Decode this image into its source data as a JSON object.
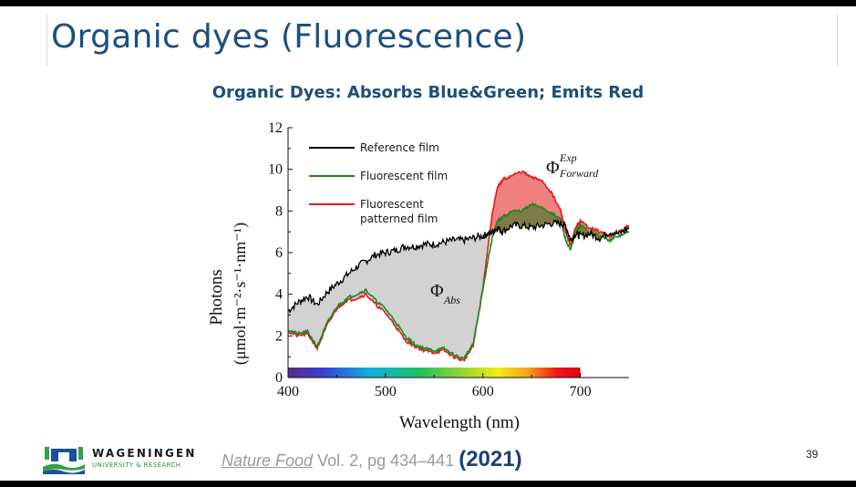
{
  "slide": {
    "title": "Organic dyes (Fluorescence)",
    "subtitle": "Organic Dyes: Absorbs Blue&Green; Emits Red",
    "page_number": "39"
  },
  "logo": {
    "name": "WAGENINGEN",
    "tagline": "UNIVERSITY & RESEARCH",
    "colors": {
      "blue": "#1c4f9c",
      "green": "#34a048"
    }
  },
  "citation": {
    "journal": "Nature Food",
    "details": " Vol. 2, pg 434–441 ",
    "year": "(2021)"
  },
  "chart_data": {
    "type": "line",
    "xlabel": "Wavelength (nm)",
    "ylabel_line1": "Photons",
    "ylabel_line2": "(μmol·m⁻²·s⁻¹·nm⁻¹)",
    "xlim": [
      400,
      750
    ],
    "ylim": [
      0,
      12
    ],
    "xticks": [
      400,
      500,
      600,
      700
    ],
    "yticks": [
      0,
      2,
      4,
      6,
      8,
      10,
      12
    ],
    "grid": false,
    "legend_position": "top-left",
    "annotations": [
      {
        "text": "Φ",
        "sub": "Abs",
        "x": 560,
        "y": 3.9
      },
      {
        "text": "Φ",
        "sub": "Forward",
        "sup": "Exp",
        "x": 690,
        "y": 10.4
      }
    ],
    "colorbar": {
      "x_start": 400,
      "x_end": 700
    },
    "fills": [
      {
        "between": [
          "Reference film",
          "Fluorescent patterned film"
        ],
        "color": "#d2d2d2",
        "where": "below_reference"
      },
      {
        "between": [
          "Fluorescent patterned film",
          "Reference film"
        ],
        "color": "#f08080",
        "where": "above_reference"
      }
    ],
    "x": [
      400,
      410,
      420,
      430,
      440,
      450,
      460,
      470,
      480,
      490,
      500,
      510,
      520,
      530,
      540,
      550,
      560,
      570,
      580,
      590,
      600,
      605,
      610,
      615,
      620,
      630,
      640,
      650,
      660,
      670,
      680,
      685,
      690,
      695,
      700,
      710,
      720,
      730,
      740,
      750
    ],
    "series": [
      {
        "name": "Reference film",
        "color": "#000000",
        "values": [
          3.2,
          3.6,
          3.9,
          3.5,
          4.1,
          4.5,
          4.9,
          5.3,
          5.6,
          5.9,
          6.0,
          6.1,
          6.3,
          6.3,
          6.4,
          6.4,
          6.5,
          6.6,
          6.6,
          6.7,
          6.8,
          6.9,
          7.0,
          7.2,
          7.0,
          7.3,
          7.3,
          7.2,
          7.3,
          7.4,
          7.4,
          7.3,
          6.6,
          6.9,
          6.8,
          6.9,
          6.7,
          7.0,
          6.9,
          7.2
        ]
      },
      {
        "name": "Fluorescent film",
        "color": "#1a8a1a",
        "values": [
          2.3,
          2.1,
          2.2,
          1.5,
          2.6,
          3.4,
          3.8,
          4.0,
          4.2,
          3.7,
          3.3,
          2.7,
          2.0,
          1.6,
          1.4,
          1.3,
          1.4,
          1.1,
          0.9,
          1.6,
          4.2,
          5.6,
          6.8,
          7.5,
          7.7,
          8.0,
          8.0,
          8.3,
          8.2,
          7.9,
          7.6,
          6.6,
          6.1,
          7.0,
          7.3,
          7.0,
          6.8,
          6.6,
          6.8,
          7.0
        ]
      },
      {
        "name": "Fluorescent patterned film",
        "color": "#e11b1b",
        "values": [
          2.2,
          2.0,
          2.1,
          1.4,
          2.5,
          3.3,
          3.7,
          3.8,
          4.0,
          3.5,
          3.1,
          2.5,
          1.8,
          1.5,
          1.3,
          1.2,
          1.3,
          1.0,
          0.8,
          1.5,
          4.3,
          6.2,
          8.0,
          9.1,
          9.5,
          9.7,
          9.9,
          9.6,
          9.5,
          8.9,
          8.0,
          7.0,
          6.3,
          7.2,
          7.5,
          7.2,
          7.0,
          6.8,
          7.0,
          7.3
        ]
      }
    ]
  }
}
